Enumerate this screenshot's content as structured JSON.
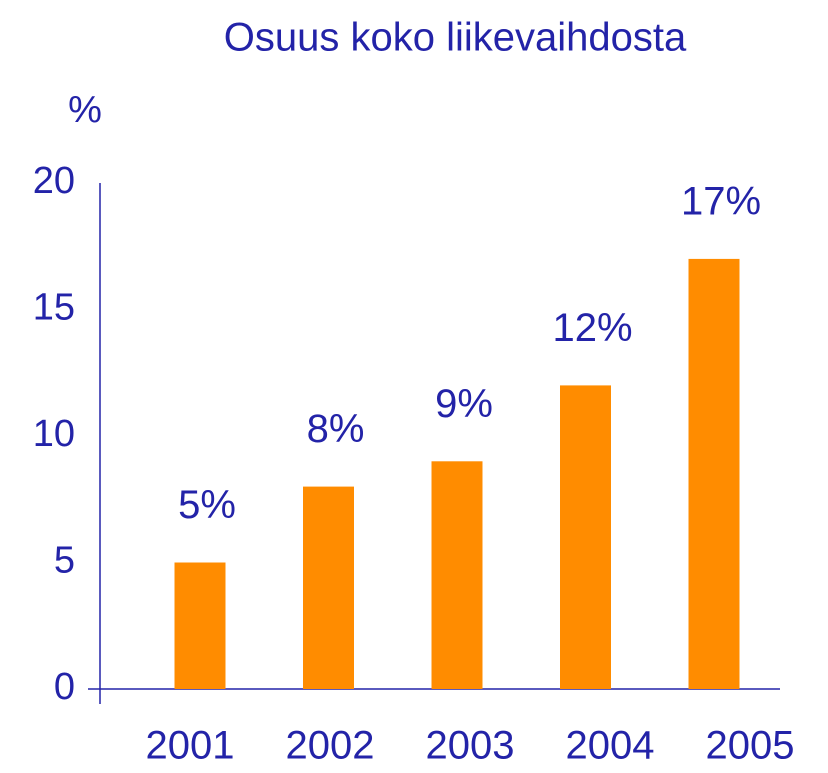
{
  "chart_data": {
    "type": "bar",
    "title": "Osuus koko liikevaihdosta",
    "ylabel": "%",
    "categories": [
      "2001",
      "2002",
      "2003",
      "2004",
      "2005"
    ],
    "values": [
      5,
      8,
      9,
      12,
      17
    ],
    "value_labels": [
      "5%",
      "8%",
      "9%",
      "12%",
      "17%"
    ],
    "color": "#ff8c00",
    "ylim": [
      0,
      20
    ],
    "yticks": [
      0,
      5,
      10,
      15,
      20
    ],
    "grid": false
  }
}
